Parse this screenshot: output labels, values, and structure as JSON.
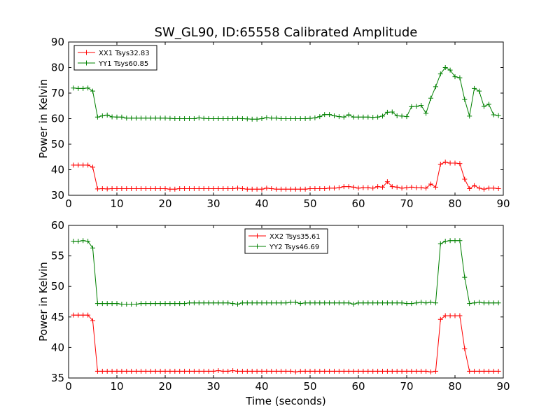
{
  "chart_data": [
    {
      "type": "line",
      "title": "SW_GL90, ID:65558 Calibrated Amplitude",
      "xlabel": "",
      "ylabel": "Power in Kelvin",
      "xlim": [
        0,
        90
      ],
      "ylim": [
        30,
        90
      ],
      "xticks": [
        0,
        10,
        20,
        30,
        40,
        50,
        60,
        70,
        80,
        90
      ],
      "yticks": [
        30,
        40,
        50,
        60,
        70,
        80,
        90
      ],
      "grid": false,
      "legend_position": "upper-left",
      "x": [
        1,
        2,
        3,
        4,
        5,
        6,
        7,
        8,
        9,
        10,
        11,
        12,
        13,
        14,
        15,
        16,
        17,
        18,
        19,
        20,
        21,
        22,
        23,
        24,
        25,
        26,
        27,
        28,
        29,
        30,
        31,
        32,
        33,
        34,
        35,
        36,
        37,
        38,
        39,
        40,
        41,
        42,
        43,
        44,
        45,
        46,
        47,
        48,
        49,
        50,
        51,
        52,
        53,
        54,
        55,
        56,
        57,
        58,
        59,
        60,
        61,
        62,
        63,
        64,
        65,
        66,
        67,
        68,
        69,
        70,
        71,
        72,
        73,
        74,
        75,
        76,
        77,
        78,
        79,
        80,
        81,
        82,
        83,
        84,
        85,
        86,
        87,
        88,
        89
      ],
      "series": [
        {
          "name": "XX1 Tsys32.83",
          "color": "#ff0000",
          "values": [
            41.8,
            41.8,
            41.8,
            41.8,
            41.0,
            32.5,
            32.6,
            32.5,
            32.6,
            32.6,
            32.6,
            32.6,
            32.6,
            32.6,
            32.6,
            32.6,
            32.6,
            32.6,
            32.6,
            32.6,
            32.4,
            32.4,
            32.6,
            32.6,
            32.6,
            32.6,
            32.6,
            32.6,
            32.6,
            32.6,
            32.6,
            32.6,
            32.6,
            32.6,
            32.8,
            32.6,
            32.4,
            32.4,
            32.4,
            32.4,
            32.8,
            32.6,
            32.4,
            32.4,
            32.4,
            32.4,
            32.4,
            32.4,
            32.4,
            32.6,
            32.6,
            32.6,
            32.6,
            32.8,
            32.8,
            33.0,
            33.4,
            33.4,
            33.2,
            32.8,
            33.0,
            33.0,
            32.8,
            33.4,
            33.2,
            35.3,
            33.4,
            33.2,
            32.8,
            33.0,
            33.2,
            33.0,
            33.0,
            32.8,
            34.4,
            33.2,
            42.2,
            43.0,
            42.6,
            42.6,
            42.4,
            36.3,
            32.6,
            33.8,
            32.8,
            32.4,
            32.8,
            32.8,
            32.6
          ]
        },
        {
          "name": "YY1 Tsys60.85",
          "color": "#008000",
          "values": [
            72.0,
            71.8,
            71.8,
            72.0,
            70.8,
            60.6,
            61.1,
            61.4,
            60.7,
            60.6,
            60.6,
            60.2,
            60.2,
            60.2,
            60.2,
            60.2,
            60.2,
            60.2,
            60.2,
            60.2,
            60.1,
            60.0,
            60.0,
            60.0,
            60.0,
            60.0,
            60.3,
            60.1,
            60.0,
            60.0,
            60.0,
            60.0,
            60.0,
            60.0,
            60.1,
            60.0,
            59.9,
            59.8,
            59.8,
            60.0,
            60.4,
            60.2,
            60.2,
            60.0,
            60.0,
            60.0,
            60.0,
            60.0,
            60.0,
            60.1,
            60.3,
            60.8,
            61.6,
            61.6,
            61.1,
            60.8,
            60.6,
            61.5,
            60.6,
            60.6,
            60.6,
            60.6,
            60.5,
            60.6,
            61.0,
            62.5,
            62.6,
            61.1,
            61.0,
            60.8,
            64.7,
            64.8,
            65.2,
            62.1,
            68.0,
            72.5,
            77.5,
            80.0,
            79.0,
            76.4,
            76.0,
            67.5,
            61.0,
            71.8,
            70.8,
            64.8,
            65.6,
            61.5,
            61.2
          ]
        }
      ]
    },
    {
      "type": "line",
      "title": "",
      "xlabel": "Time (seconds)",
      "ylabel": "Power in Kelvin",
      "xlim": [
        0,
        90
      ],
      "ylim": [
        35,
        60
      ],
      "xticks": [
        0,
        10,
        20,
        30,
        40,
        50,
        60,
        70,
        80,
        90
      ],
      "yticks": [
        35,
        40,
        45,
        50,
        55,
        60
      ],
      "grid": false,
      "legend_position": "upper-center",
      "x": [
        1,
        2,
        3,
        4,
        5,
        6,
        7,
        8,
        9,
        10,
        11,
        12,
        13,
        14,
        15,
        16,
        17,
        18,
        19,
        20,
        21,
        22,
        23,
        24,
        25,
        26,
        27,
        28,
        29,
        30,
        31,
        32,
        33,
        34,
        35,
        36,
        37,
        38,
        39,
        40,
        41,
        42,
        43,
        44,
        45,
        46,
        47,
        48,
        49,
        50,
        51,
        52,
        53,
        54,
        55,
        56,
        57,
        58,
        59,
        60,
        61,
        62,
        63,
        64,
        65,
        66,
        67,
        68,
        69,
        70,
        71,
        72,
        73,
        74,
        75,
        76,
        77,
        78,
        79,
        80,
        81,
        82,
        83,
        84,
        85,
        86,
        87,
        88,
        89
      ],
      "series": [
        {
          "name": "XX2 Tsys35.61",
          "color": "#ff0000",
          "values": [
            45.3,
            45.3,
            45.3,
            45.3,
            44.4,
            36.1,
            36.1,
            36.1,
            36.1,
            36.1,
            36.1,
            36.1,
            36.1,
            36.1,
            36.1,
            36.1,
            36.1,
            36.1,
            36.1,
            36.1,
            36.1,
            36.1,
            36.1,
            36.1,
            36.1,
            36.1,
            36.1,
            36.1,
            36.1,
            36.1,
            36.2,
            36.1,
            36.1,
            36.2,
            36.1,
            36.1,
            36.1,
            36.1,
            36.1,
            36.1,
            36.1,
            36.1,
            36.1,
            36.1,
            36.1,
            36.1,
            36.0,
            36.1,
            36.1,
            36.1,
            36.1,
            36.1,
            36.1,
            36.1,
            36.1,
            36.1,
            36.1,
            36.1,
            36.1,
            36.1,
            36.1,
            36.1,
            36.1,
            36.1,
            36.1,
            36.1,
            36.1,
            36.1,
            36.1,
            36.1,
            36.1,
            36.1,
            36.1,
            36.1,
            36.0,
            36.1,
            44.6,
            45.2,
            45.2,
            45.2,
            45.2,
            39.8,
            36.1,
            36.1,
            36.1,
            36.1,
            36.1,
            36.1,
            36.1
          ]
        },
        {
          "name": "YY2 Tsys46.69",
          "color": "#008000",
          "values": [
            57.4,
            57.4,
            57.5,
            57.4,
            56.3,
            47.2,
            47.2,
            47.2,
            47.2,
            47.2,
            47.1,
            47.1,
            47.1,
            47.1,
            47.2,
            47.2,
            47.2,
            47.2,
            47.2,
            47.2,
            47.2,
            47.2,
            47.2,
            47.2,
            47.3,
            47.3,
            47.3,
            47.3,
            47.3,
            47.3,
            47.3,
            47.3,
            47.3,
            47.2,
            47.1,
            47.3,
            47.3,
            47.3,
            47.3,
            47.3,
            47.3,
            47.3,
            47.3,
            47.3,
            47.3,
            47.4,
            47.4,
            47.2,
            47.3,
            47.3,
            47.3,
            47.3,
            47.3,
            47.3,
            47.3,
            47.3,
            47.3,
            47.3,
            47.1,
            47.3,
            47.3,
            47.3,
            47.3,
            47.3,
            47.3,
            47.3,
            47.3,
            47.3,
            47.3,
            47.2,
            47.2,
            47.3,
            47.4,
            47.3,
            47.4,
            47.3,
            57.0,
            57.4,
            57.5,
            57.5,
            57.5,
            51.5,
            47.2,
            47.3,
            47.4,
            47.3,
            47.3,
            47.3,
            47.3
          ]
        }
      ]
    }
  ]
}
